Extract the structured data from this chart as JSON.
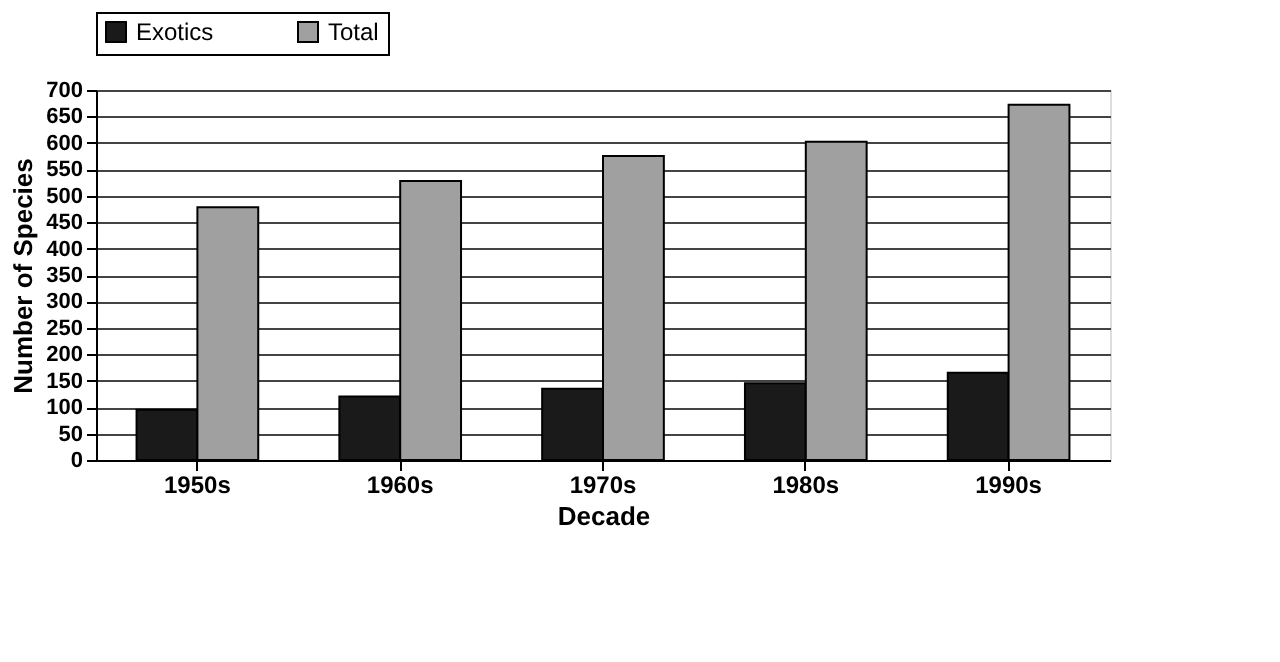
{
  "chart_data": {
    "type": "bar",
    "xlabel": "Decade",
    "ylabel": "Number of Species",
    "categories": [
      "1950s",
      "1960s",
      "1970s",
      "1980s",
      "1990s"
    ],
    "series": [
      {
        "name": "Exotics",
        "color": "#1a1a1a",
        "values": [
          95,
          120,
          135,
          145,
          165
        ]
      },
      {
        "name": "Total",
        "color": "#a0a0a0",
        "values": [
          478,
          528,
          575,
          602,
          672
        ]
      }
    ],
    "ylim": [
      0,
      700
    ],
    "yticks": [
      0,
      50,
      100,
      150,
      200,
      250,
      300,
      350,
      400,
      450,
      500,
      550,
      600,
      650,
      700
    ],
    "grid": "y",
    "legend": "top"
  }
}
